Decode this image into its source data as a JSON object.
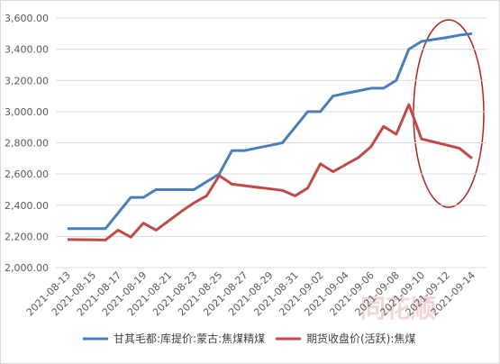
{
  "chart_data": {
    "type": "line",
    "categories": [
      "2021-08-13",
      null,
      "2021-08-15",
      null,
      "2021-08-17",
      null,
      "2021-08-19",
      null,
      "2021-08-21",
      null,
      "2021-08-23",
      null,
      "2021-08-25",
      null,
      "2021-08-27",
      null,
      "2021-08-29",
      null,
      "2021-08-31",
      null,
      "2021-09-02",
      null,
      "2021-09-04",
      null,
      "2021-09-06",
      null,
      "2021-09-08",
      null,
      "2021-09-10",
      null,
      "2021-09-12",
      null,
      "2021-09-14"
    ],
    "series": [
      {
        "name": "甘其毛都:库提价:蒙古:焦煤精煤",
        "color": "#4a7ebb",
        "values": [
          2250,
          2250,
          2250,
          2250,
          2350,
          2450,
          2450,
          2500,
          2500,
          2500,
          2500,
          2550,
          2600,
          2750,
          2750,
          2767,
          2783,
          2800,
          2900,
          3000,
          3000,
          3100,
          3117,
          3133,
          3150,
          3150,
          3200,
          3400,
          3450,
          3463,
          3475,
          3490,
          3500
        ]
      },
      {
        "name": "期货收盘价(活跃):焦煤",
        "color": "#be4b48",
        "values": [
          2180,
          2179,
          2178,
          2177,
          2240,
          2195,
          2285,
          2240,
          2300,
          2360,
          2415,
          2460,
          2590,
          2535,
          2525,
          2515,
          2505,
          2495,
          2460,
          2510,
          2665,
          2615,
          2660,
          2705,
          2775,
          2905,
          2855,
          3045,
          2825,
          2805,
          2785,
          2765,
          2700
        ]
      }
    ],
    "ylim": [
      2000,
      3600
    ],
    "yticks": [
      {
        "value": 2000,
        "label": "2,000.00"
      },
      {
        "value": 2200,
        "label": "2,200.00"
      },
      {
        "value": 2400,
        "label": "2,400.00"
      },
      {
        "value": 2600,
        "label": "2,600.00"
      },
      {
        "value": 2800,
        "label": "2,800.00"
      },
      {
        "value": 3000,
        "label": "3,000.00"
      },
      {
        "value": 3200,
        "label": "3,200.00"
      },
      {
        "value": 3400,
        "label": "3,400.00"
      },
      {
        "value": 3600,
        "label": "3,600.00"
      }
    ],
    "grid": true,
    "legend": "bottom",
    "watermark": "同花顺"
  }
}
